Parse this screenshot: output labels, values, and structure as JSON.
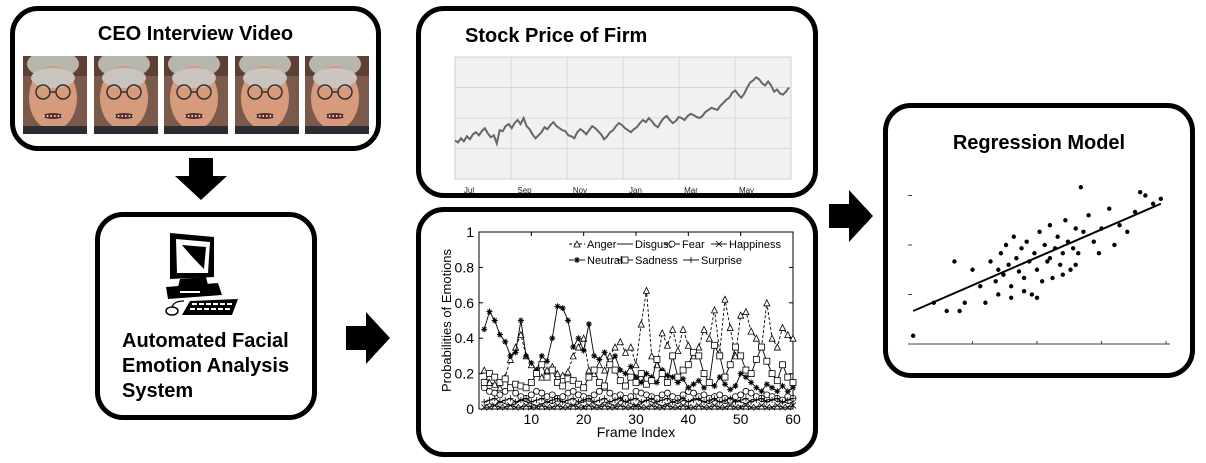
{
  "video_box": {
    "title": "CEO Interview Video",
    "frame_count": 5
  },
  "system_box": {
    "lines": [
      "Automated Facial",
      "Emotion Analysis",
      "System"
    ],
    "icon": "computer-icon"
  },
  "stock_box": {
    "title": "Stock Price of Firm",
    "x_ticks": [
      "Jul",
      "Sep",
      "Nov",
      "Jan",
      "Mar",
      "May"
    ]
  },
  "regression_box": {
    "title": "Regression Model"
  },
  "chart_data": [
    {
      "type": "line",
      "xlabel": "",
      "ylabel": "",
      "x_ticks": [
        "Jul",
        "Sep",
        "Nov",
        "Jan",
        "Mar",
        "May"
      ],
      "series": [
        {
          "values": [
            38,
            36,
            40,
            37,
            42,
            39,
            44,
            46,
            43,
            47,
            50,
            45,
            41,
            43,
            35,
            48,
            47,
            52,
            54,
            50,
            55,
            58,
            54,
            60,
            52,
            49,
            44,
            40,
            43,
            46,
            51,
            49,
            53,
            56,
            52,
            50,
            48,
            47,
            43,
            42,
            40,
            46,
            49,
            47,
            44,
            48,
            52,
            50,
            47,
            44,
            39,
            42,
            46,
            48,
            52,
            55,
            53,
            50,
            48,
            46,
            49,
            51,
            55,
            58,
            56,
            60,
            57,
            53,
            51,
            56,
            60,
            62,
            58,
            55,
            57,
            61,
            60,
            58,
            62,
            64,
            63,
            61,
            60,
            62,
            66,
            68,
            70,
            69,
            68,
            72,
            75,
            78,
            80,
            85,
            87,
            83,
            80,
            84,
            90,
            95,
            97,
            100,
            98,
            94,
            92,
            96,
            92,
            86,
            88,
            84,
            83,
            86,
            90
          ]
        }
      ],
      "ylim": [
        0,
        120
      ]
    },
    {
      "type": "line",
      "xlabel": "Frame Index",
      "ylabel": "Probabilities of Emotions",
      "xlim": [
        0,
        60
      ],
      "ylim": [
        0,
        1
      ],
      "x_ticks": [
        10,
        20,
        30,
        40,
        50,
        60
      ],
      "y_ticks": [
        0,
        0.2,
        0.4,
        0.6,
        0.8,
        1
      ],
      "legend_position": "top-right",
      "series": [
        {
          "name": "Anger",
          "marker": "triangle",
          "values": [
            0.22,
            0.15,
            0.14,
            0.12,
            0.18,
            0.28,
            0.35,
            0.42,
            0.3,
            0.25,
            0.2,
            0.18,
            0.22,
            0.24,
            0.2,
            0.19,
            0.21,
            0.3,
            0.35,
            0.4,
            0.22,
            0.2,
            0.25,
            0.22,
            0.3,
            0.35,
            0.38,
            0.32,
            0.35,
            0.25,
            0.48,
            0.67,
            0.3,
            0.25,
            0.43,
            0.36,
            0.45,
            0.33,
            0.45,
            0.36,
            0.3,
            0.35,
            0.45,
            0.4,
            0.56,
            0.32,
            0.62,
            0.46,
            0.3,
            0.53,
            0.55,
            0.44,
            0.4,
            0.35,
            0.6,
            0.4,
            0.35,
            0.46,
            0.42,
            0.4
          ]
        },
        {
          "name": "Disgust",
          "marker": "none",
          "values": [
            0.02,
            0.03,
            0.02,
            0.04,
            0.03,
            0.02,
            0.03,
            0.05,
            0.04,
            0.03,
            0.02,
            0.03,
            0.04,
            0.03,
            0.05,
            0.04,
            0.03,
            0.02,
            0.03,
            0.04,
            0.05,
            0.03,
            0.02,
            0.04,
            0.03,
            0.02,
            0.05,
            0.04,
            0.03,
            0.02,
            0.03,
            0.05,
            0.04,
            0.03,
            0.02,
            0.03,
            0.04,
            0.03,
            0.05,
            0.04,
            0.06,
            0.05,
            0.04,
            0.03,
            0.05,
            0.04,
            0.03,
            0.04,
            0.05,
            0.04,
            0.03,
            0.05,
            0.06,
            0.04,
            0.05,
            0.06,
            0.04,
            0.05,
            0.03,
            0.04
          ]
        },
        {
          "name": "Fear",
          "marker": "circle",
          "values": [
            0.12,
            0.1,
            0.09,
            0.08,
            0.1,
            0.12,
            0.09,
            0.07,
            0.06,
            0.08,
            0.1,
            0.09,
            0.07,
            0.08,
            0.06,
            0.07,
            0.09,
            0.1,
            0.08,
            0.07,
            0.06,
            0.08,
            0.1,
            0.12,
            0.09,
            0.07,
            0.08,
            0.06,
            0.07,
            0.1,
            0.09,
            0.08,
            0.07,
            0.06,
            0.08,
            0.09,
            0.07,
            0.06,
            0.08,
            0.1,
            0.09,
            0.07,
            0.08,
            0.06,
            0.07,
            0.08,
            0.06,
            0.05,
            0.07,
            0.08,
            0.1,
            0.09,
            0.07,
            0.06,
            0.08,
            0.07,
            0.06,
            0.05,
            0.07,
            0.06
          ]
        },
        {
          "name": "Happiness",
          "marker": "x",
          "values": [
            0.01,
            0.01,
            0.02,
            0.01,
            0.01,
            0.02,
            0.01,
            0.01,
            0.02,
            0.01,
            0.01,
            0.02,
            0.01,
            0.01,
            0.02,
            0.01,
            0.01,
            0.02,
            0.01,
            0.01,
            0.02,
            0.01,
            0.01,
            0.02,
            0.01,
            0.01,
            0.02,
            0.01,
            0.01,
            0.02,
            0.01,
            0.01,
            0.02,
            0.01,
            0.01,
            0.02,
            0.01,
            0.01,
            0.02,
            0.01,
            0.01,
            0.02,
            0.01,
            0.01,
            0.02,
            0.01,
            0.01,
            0.02,
            0.01,
            0.01,
            0.02,
            0.01,
            0.01,
            0.02,
            0.01,
            0.01,
            0.02,
            0.01,
            0.01,
            0.02
          ]
        },
        {
          "name": "Neutral",
          "marker": "star",
          "values": [
            0.45,
            0.55,
            0.5,
            0.42,
            0.38,
            0.3,
            0.32,
            0.5,
            0.3,
            0.26,
            0.22,
            0.3,
            0.27,
            0.4,
            0.58,
            0.57,
            0.5,
            0.35,
            0.4,
            0.33,
            0.48,
            0.3,
            0.28,
            0.32,
            0.25,
            0.3,
            0.22,
            0.2,
            0.24,
            0.18,
            0.15,
            0.2,
            0.18,
            0.15,
            0.22,
            0.19,
            0.18,
            0.15,
            0.17,
            0.12,
            0.14,
            0.16,
            0.12,
            0.15,
            0.13,
            0.18,
            0.14,
            0.11,
            0.13,
            0.2,
            0.18,
            0.15,
            0.12,
            0.1,
            0.14,
            0.12,
            0.1,
            0.13,
            0.1,
            0.12
          ]
        },
        {
          "name": "Sadness",
          "marker": "square",
          "values": [
            0.15,
            0.2,
            0.18,
            0.15,
            0.17,
            0.12,
            0.14,
            0.13,
            0.12,
            0.15,
            0.2,
            0.25,
            0.18,
            0.22,
            0.15,
            0.13,
            0.17,
            0.16,
            0.14,
            0.12,
            0.18,
            0.22,
            0.15,
            0.13,
            0.25,
            0.22,
            0.16,
            0.13,
            0.18,
            0.15,
            0.2,
            0.14,
            0.16,
            0.28,
            0.2,
            0.15,
            0.3,
            0.18,
            0.22,
            0.25,
            0.32,
            0.3,
            0.2,
            0.15,
            0.36,
            0.3,
            0.18,
            0.25,
            0.35,
            0.3,
            0.22,
            0.2,
            0.28,
            0.35,
            0.27,
            0.2,
            0.16,
            0.25,
            0.18,
            0.15
          ]
        },
        {
          "name": "Surprise",
          "marker": "plus",
          "values": [
            0.04,
            0.05,
            0.06,
            0.04,
            0.05,
            0.06,
            0.04,
            0.05,
            0.06,
            0.04,
            0.05,
            0.06,
            0.04,
            0.05,
            0.06,
            0.04,
            0.05,
            0.06,
            0.04,
            0.05,
            0.06,
            0.04,
            0.05,
            0.06,
            0.04,
            0.05,
            0.06,
            0.04,
            0.05,
            0.06,
            0.04,
            0.05,
            0.06,
            0.04,
            0.05,
            0.06,
            0.04,
            0.05,
            0.06,
            0.04,
            0.05,
            0.06,
            0.04,
            0.05,
            0.06,
            0.04,
            0.05,
            0.06,
            0.04,
            0.05,
            0.06,
            0.04,
            0.05,
            0.06,
            0.04,
            0.05,
            0.06,
            0.04,
            0.05,
            0.06
          ]
        }
      ]
    },
    {
      "type": "scatter",
      "xlabel": "",
      "ylabel": "",
      "points": [
        [
          0.02,
          0.05
        ],
        [
          0.1,
          0.25
        ],
        [
          0.15,
          0.2
        ],
        [
          0.18,
          0.5
        ],
        [
          0.2,
          0.2
        ],
        [
          0.22,
          0.25
        ],
        [
          0.25,
          0.45
        ],
        [
          0.28,
          0.35
        ],
        [
          0.3,
          0.25
        ],
        [
          0.32,
          0.5
        ],
        [
          0.34,
          0.38
        ],
        [
          0.35,
          0.3
        ],
        [
          0.36,
          0.55
        ],
        [
          0.37,
          0.42
        ],
        [
          0.38,
          0.6
        ],
        [
          0.39,
          0.48
        ],
        [
          0.4,
          0.35
        ],
        [
          0.41,
          0.65
        ],
        [
          0.42,
          0.52
        ],
        [
          0.43,
          0.44
        ],
        [
          0.44,
          0.58
        ],
        [
          0.45,
          0.4
        ],
        [
          0.46,
          0.62
        ],
        [
          0.47,
          0.5
        ],
        [
          0.48,
          0.3
        ],
        [
          0.49,
          0.55
        ],
        [
          0.5,
          0.45
        ],
        [
          0.51,
          0.68
        ],
        [
          0.52,
          0.38
        ],
        [
          0.53,
          0.6
        ],
        [
          0.54,
          0.5
        ],
        [
          0.55,
          0.72
        ],
        [
          0.56,
          0.4
        ],
        [
          0.57,
          0.58
        ],
        [
          0.58,
          0.65
        ],
        [
          0.59,
          0.48
        ],
        [
          0.6,
          0.55
        ],
        [
          0.61,
          0.75
        ],
        [
          0.62,
          0.62
        ],
        [
          0.63,
          0.45
        ],
        [
          0.64,
          0.58
        ],
        [
          0.65,
          0.7
        ],
        [
          0.66,
          0.55
        ],
        [
          0.67,
          0.95
        ],
        [
          0.68,
          0.68
        ],
        [
          0.7,
          0.78
        ],
        [
          0.72,
          0.62
        ],
        [
          0.74,
          0.55
        ],
        [
          0.75,
          0.7
        ],
        [
          0.78,
          0.82
        ],
        [
          0.8,
          0.6
        ],
        [
          0.82,
          0.72
        ],
        [
          0.85,
          0.68
        ],
        [
          0.88,
          0.8
        ],
        [
          0.9,
          0.92
        ],
        [
          0.92,
          0.9
        ],
        [
          0.95,
          0.85
        ],
        [
          0.98,
          0.88
        ],
        [
          0.5,
          0.28
        ],
        [
          0.45,
          0.32
        ],
        [
          0.4,
          0.28
        ],
        [
          0.35,
          0.45
        ],
        [
          0.6,
          0.42
        ],
        [
          0.65,
          0.48
        ],
        [
          0.55,
          0.52
        ]
      ],
      "fit_line": [
        [
          0.02,
          0.2
        ],
        [
          0.98,
          0.85
        ]
      ]
    }
  ]
}
